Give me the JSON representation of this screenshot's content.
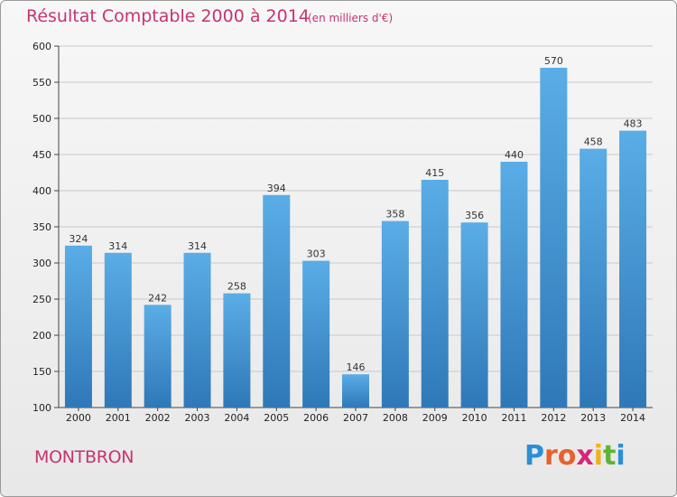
{
  "title": "Résultat Comptable 2000 à 2014",
  "subtitle": "(en milliers d'€)",
  "commune": "MONTBRON",
  "logo": {
    "text": "Proxiti",
    "letters": [
      "P",
      "r",
      "o",
      "x",
      "i",
      "t",
      "i"
    ],
    "colors": [
      "#2a8fd6",
      "#e8612c",
      "#e8612c",
      "#d4267a",
      "#f2b21b",
      "#5fb432",
      "#2a8fd6"
    ]
  },
  "chart_data": {
    "type": "bar",
    "categories": [
      "2000",
      "2001",
      "2002",
      "2003",
      "2004",
      "2005",
      "2006",
      "2007",
      "2008",
      "2009",
      "2010",
      "2011",
      "2012",
      "2013",
      "2014"
    ],
    "values": [
      324,
      314,
      242,
      314,
      258,
      394,
      303,
      146,
      358,
      415,
      356,
      440,
      570,
      458,
      483
    ],
    "title": "Résultat Comptable 2000 à 2014",
    "subtitle": "(en milliers d'€)",
    "xlabel": "",
    "ylabel": "",
    "ylim": [
      100,
      600
    ],
    "yticks": [
      100,
      150,
      200,
      250,
      300,
      350,
      400,
      450,
      500,
      550,
      600
    ],
    "grid": true,
    "bar_color_top": "#5aade6",
    "bar_color_bottom": "#2f78b8"
  }
}
